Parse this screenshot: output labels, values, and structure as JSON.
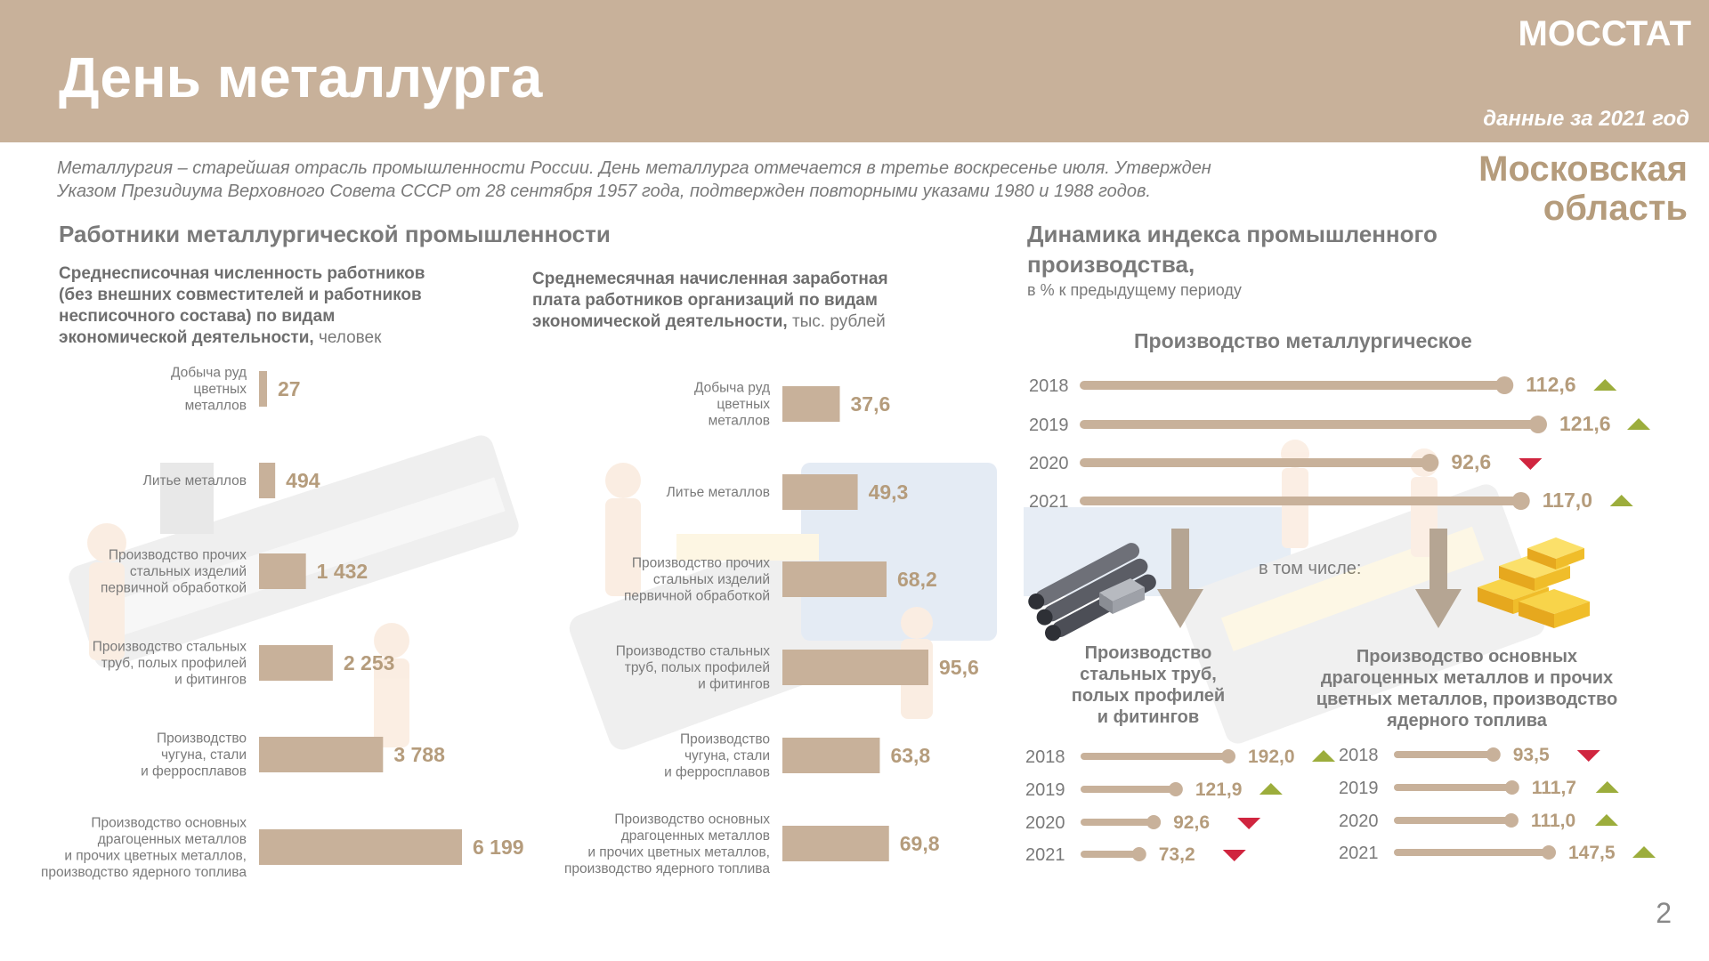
{
  "header": {
    "title": "День металлурга",
    "brand": "МОССТАТ",
    "year_note": "данные за 2021 год",
    "region_line1": "Московская",
    "region_line2": "область"
  },
  "intro": {
    "line1": "Металлургия – старейшая отрасль промышленности России. День металлурга отмечается в третье воскресенье июля. Утвержден",
    "line2": "Указом Президиума Верховного Совета СССР от 28 сентября 1957 года, подтвержден повторными указами 1980 и 1988 годов."
  },
  "workers_section": {
    "title": "Работники металлургической промышленности",
    "employees_title_bold": "Среднесписочная численность работников (без внешних совместителей и работников несписочного состава) по видам экономической деятельности,",
    "employees_title_unit": "человек",
    "salary_title_bold": "Среднемесячная начисленная заработная плата работников организаций по видам экономической деятельности,",
    "salary_title_unit": "тыс. рублей"
  },
  "index_section": {
    "title_line1": "Динамика индекса промышленного",
    "title_line2": "производства,",
    "subtitle": "в % к предыдущему периоду",
    "main_chart_title": "Производство металлургическое",
    "including": "в том числе:",
    "pipes_title": [
      "Производство",
      "стальных труб,",
      "полых профилей",
      "и фитингов"
    ],
    "metals_title": [
      "Производство основных",
      "драгоценных металлов и прочих",
      "цветных металлов, производство",
      "ядерного топлива"
    ]
  },
  "colors": {
    "bar": "#c8b19a",
    "value": "#b59c7c",
    "up": "#9cad3c",
    "down": "#d0253f",
    "text": "#7a7a7a"
  },
  "chart_data": [
    {
      "type": "bar",
      "orientation": "horizontal",
      "title": "Среднесписочная численность работников (без внешних совместителей и работников несписочного состава) по видам экономической деятельности, человек",
      "unit": "человек",
      "categories": [
        [
          "Добыча руд",
          "цветных",
          "металлов"
        ],
        [
          "Литье металлов"
        ],
        [
          "Производство прочих",
          "стальных изделий",
          "первичной обработкой"
        ],
        [
          "Производство стальных",
          "труб, полых профилей",
          "и фитингов"
        ],
        [
          "Производство",
          "чугуна, стали",
          "и ферросплавов"
        ],
        [
          "Производство основных",
          "драгоценных металлов",
          "и прочих цветных металлов,",
          "производство ядерного топлива"
        ]
      ],
      "values": [
        27,
        494,
        1432,
        2253,
        3788,
        6199
      ],
      "value_labels": [
        "27",
        "494",
        "1 432",
        "2 253",
        "3 788",
        "6 199"
      ],
      "xlim": [
        0,
        6199
      ]
    },
    {
      "type": "bar",
      "orientation": "horizontal",
      "title": "Среднемесячная начисленная заработная плата работников организаций по видам экономической деятельности, тыс. рублей",
      "unit": "тыс. рублей",
      "categories": [
        [
          "Добыча руд",
          "цветных",
          "металлов"
        ],
        [
          "Литье металлов"
        ],
        [
          "Производство прочих",
          "стальных изделий",
          "первичной обработкой"
        ],
        [
          "Производство стальных",
          "труб, полых профилей",
          "и фитингов"
        ],
        [
          "Производство",
          "чугуна, стали",
          "и ферросплавов"
        ],
        [
          "Производство основных",
          "драгоценных металлов",
          "и прочих цветных металлов,",
          "производство ядерного топлива"
        ]
      ],
      "values": [
        37.6,
        49.3,
        68.2,
        95.6,
        63.8,
        69.8
      ],
      "value_labels": [
        "37,6",
        "49,3",
        "68,2",
        "95,6",
        "63,8",
        "69,8"
      ],
      "xlim": [
        0,
        95.6
      ]
    },
    {
      "type": "bar",
      "orientation": "horizontal",
      "title": "Производство металлургическое",
      "unit": "% к предыдущему периоду",
      "categories": [
        "2018",
        "2019",
        "2020",
        "2021"
      ],
      "values": [
        112.6,
        121.6,
        92.6,
        117.0
      ],
      "value_labels": [
        "112,6",
        "121,6",
        "92,6",
        "117,0"
      ],
      "trend": [
        "up",
        "up",
        "down",
        "up"
      ],
      "xlim": [
        0,
        121.6
      ]
    },
    {
      "type": "bar",
      "orientation": "horizontal",
      "title": "Производство стальных труб, полых профилей и фитингов",
      "unit": "% к предыдущему периоду",
      "categories": [
        "2018",
        "2019",
        "2020",
        "2021"
      ],
      "values": [
        192.0,
        121.9,
        92.6,
        73.2
      ],
      "value_labels": [
        "192,0",
        "121,9",
        "92,6",
        "73,2"
      ],
      "trend": [
        "up",
        "up",
        "down",
        "down"
      ],
      "xlim": [
        0,
        192.0
      ]
    },
    {
      "type": "bar",
      "orientation": "horizontal",
      "title": "Производство основных драгоценных металлов и прочих цветных металлов, производство ядерного топлива",
      "unit": "% к предыдущему периоду",
      "categories": [
        "2018",
        "2019",
        "2020",
        "2021"
      ],
      "values": [
        93.5,
        111.7,
        111.0,
        147.5
      ],
      "value_labels": [
        "93,5",
        "111,7",
        "111,0",
        "147,5"
      ],
      "trend": [
        "down",
        "up",
        "up",
        "up"
      ],
      "xlim": [
        0,
        147.5
      ]
    }
  ],
  "page_number": "2"
}
